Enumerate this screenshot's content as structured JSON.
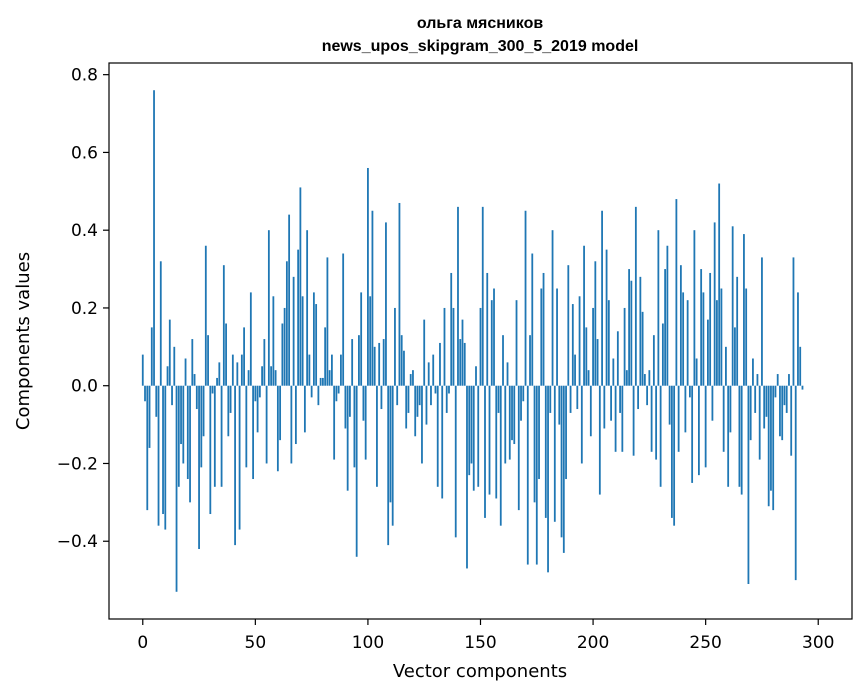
{
  "chart_data": {
    "type": "bar",
    "title": "ольга мясников",
    "subtitle": "news_upos_skipgram_300_5_2019 model",
    "xlabel": "Vector components",
    "ylabel": "Components values",
    "xlim": [
      -15,
      315
    ],
    "ylim": [
      -0.6,
      0.83
    ],
    "xticks": [
      0,
      50,
      100,
      150,
      200,
      250,
      300
    ],
    "xtick_labels": [
      "0",
      "50",
      "100",
      "150",
      "200",
      "250",
      "300"
    ],
    "yticks": [
      -0.4,
      -0.2,
      0.0,
      0.2,
      0.4,
      0.6,
      0.8
    ],
    "ytick_labels": [
      "−0.4",
      "−0.2",
      "0.0",
      "0.2",
      "0.4",
      "0.6",
      "0.8"
    ],
    "bar_color": "#1f77b4",
    "grid": false,
    "x_start": 0,
    "values": [
      0.08,
      -0.04,
      -0.32,
      -0.16,
      0.15,
      0.76,
      -0.08,
      -0.36,
      0.32,
      -0.33,
      -0.37,
      0.05,
      0.17,
      -0.05,
      0.1,
      -0.53,
      -0.26,
      -0.15,
      -0.2,
      0.07,
      -0.24,
      -0.3,
      0.12,
      0.03,
      -0.06,
      -0.42,
      -0.21,
      -0.13,
      0.36,
      0.13,
      -0.33,
      -0.02,
      -0.26,
      0.02,
      0.06,
      -0.26,
      0.31,
      0.16,
      -0.13,
      -0.07,
      0.08,
      -0.41,
      0.06,
      -0.37,
      0.08,
      0.15,
      -0.21,
      0.04,
      0.24,
      -0.24,
      -0.04,
      -0.12,
      -0.03,
      0.05,
      0.12,
      -0.2,
      0.4,
      0.05,
      0.23,
      0.04,
      -0.22,
      -0.14,
      0.16,
      0.2,
      0.32,
      0.44,
      -0.2,
      0.28,
      -0.15,
      0.35,
      0.51,
      0.23,
      -0.12,
      0.4,
      0.08,
      -0.03,
      0.24,
      0.21,
      -0.05,
      0.02,
      0.02,
      0.15,
      0.33,
      0.04,
      0.08,
      -0.19,
      -0.04,
      -0.02,
      0.08,
      0.34,
      -0.11,
      -0.27,
      -0.08,
      0.12,
      -0.21,
      -0.44,
      0.13,
      0.24,
      -0.09,
      -0.19,
      0.56,
      0.23,
      0.45,
      0.1,
      -0.26,
      0.11,
      -0.06,
      0.12,
      0.42,
      -0.41,
      -0.3,
      -0.36,
      0.2,
      -0.05,
      0.47,
      0.13,
      0.09,
      -0.11,
      -0.07,
      0.03,
      0.04,
      -0.13,
      -0.08,
      -0.05,
      -0.2,
      0.17,
      -0.1,
      0.06,
      -0.05,
      0.08,
      -0.02,
      -0.26,
      0.11,
      -0.29,
      0.2,
      -0.07,
      -0.02,
      0.29,
      0.2,
      -0.39,
      0.46,
      0.12,
      0.17,
      0.11,
      -0.47,
      -0.23,
      -0.2,
      -0.27,
      0.05,
      -0.26,
      0.2,
      0.46,
      -0.34,
      0.29,
      -0.28,
      0.22,
      0.25,
      -0.29,
      -0.07,
      -0.36,
      0.13,
      -0.2,
      0.06,
      -0.19,
      -0.14,
      -0.15,
      0.22,
      -0.32,
      -0.09,
      -0.04,
      0.45,
      -0.46,
      0.13,
      0.34,
      -0.3,
      -0.46,
      -0.24,
      0.25,
      0.29,
      -0.34,
      -0.48,
      -0.07,
      0.4,
      -0.35,
      0.25,
      -0.1,
      -0.39,
      -0.43,
      -0.24,
      0.31,
      -0.07,
      0.21,
      0.08,
      -0.06,
      0.23,
      -0.2,
      0.36,
      0.15,
      0.04,
      -0.13,
      0.2,
      0.32,
      0.12,
      -0.28,
      0.45,
      -0.11,
      0.35,
      0.22,
      -0.09,
      0.07,
      -0.17,
      0.14,
      -0.07,
      -0.17,
      0.2,
      0.04,
      0.3,
      0.27,
      -0.18,
      0.46,
      -0.06,
      0.28,
      0.19,
      0.03,
      -0.05,
      0.04,
      -0.17,
      0.13,
      -0.19,
      0.4,
      -0.26,
      0.16,
      0.3,
      0.36,
      -0.1,
      -0.34,
      -0.36,
      0.48,
      -0.17,
      0.31,
      0.24,
      -0.12,
      0.22,
      -0.03,
      -0.25,
      0.4,
      0.07,
      -0.23,
      0.3,
      0.24,
      -0.21,
      0.17,
      0.29,
      -0.09,
      0.42,
      0.22,
      0.52,
      0.25,
      -0.17,
      0.1,
      -0.26,
      -0.12,
      0.41,
      0.15,
      0.28,
      -0.26,
      -0.28,
      0.39,
      0.25,
      -0.51,
      -0.14,
      0.07,
      -0.07,
      0.03,
      -0.19,
      0.33,
      -0.11,
      -0.08,
      -0.31,
      -0.27,
      -0.32,
      -0.03,
      0.03,
      -0.13,
      -0.14,
      -0.05,
      -0.07,
      0.03,
      -0.18,
      0.33,
      -0.5,
      0.24,
      0.1,
      -0.01
    ]
  }
}
